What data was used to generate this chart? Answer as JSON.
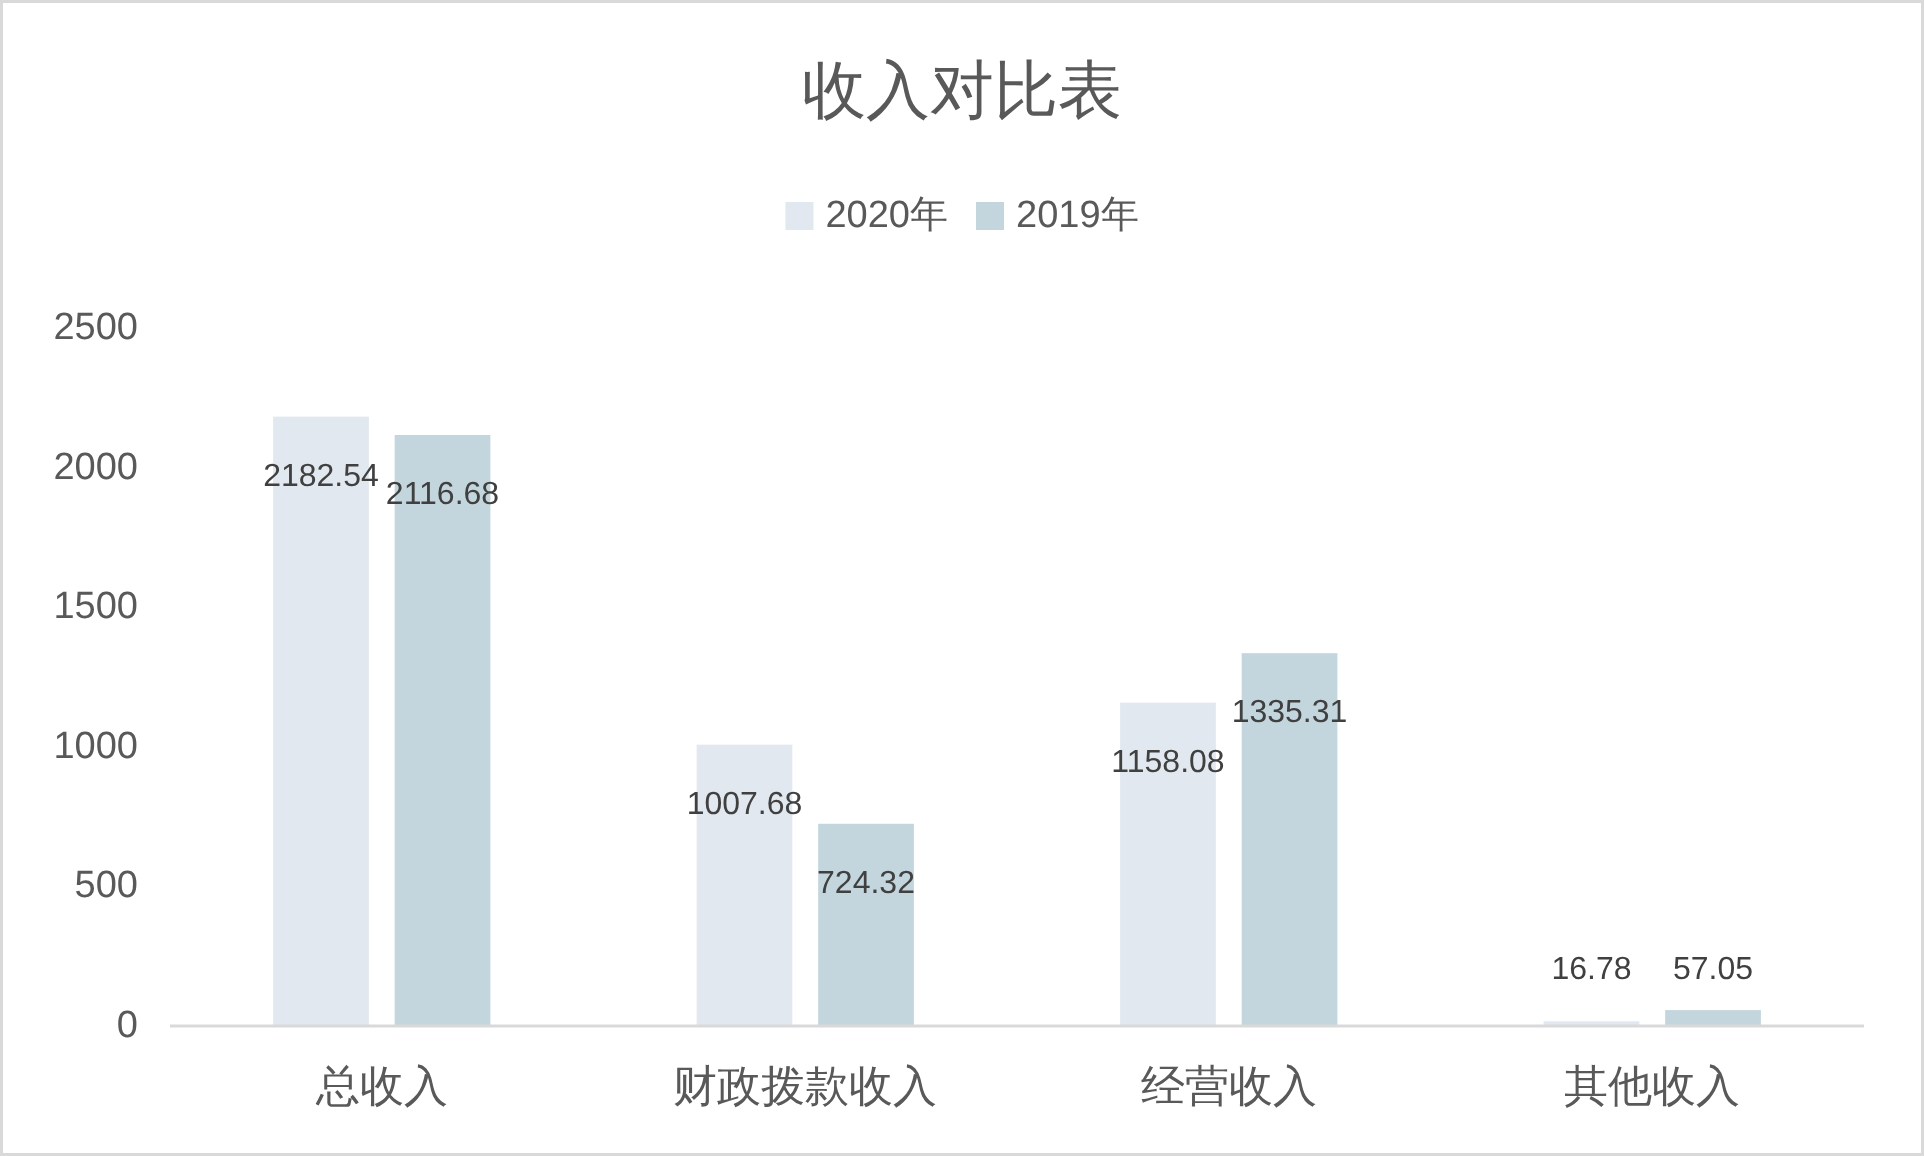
{
  "chart_data": {
    "type": "bar",
    "title": "收入对比表",
    "categories": [
      "总收入",
      "财政拨款收入",
      "经营收入",
      "其他收入"
    ],
    "series": [
      {
        "name": "2020年",
        "color": "#e1e8f0",
        "values": [
          2182.54,
          1007.68,
          1158.08,
          16.78
        ]
      },
      {
        "name": "2019年",
        "color": "#c3d6dd",
        "values": [
          2116.68,
          724.32,
          1335.31,
          57.05
        ]
      }
    ],
    "ylim": [
      0,
      2500
    ],
    "yticks": [
      0,
      500,
      1000,
      1500,
      2000,
      2500
    ],
    "grid": false,
    "legend": "top",
    "data_labels": true
  }
}
